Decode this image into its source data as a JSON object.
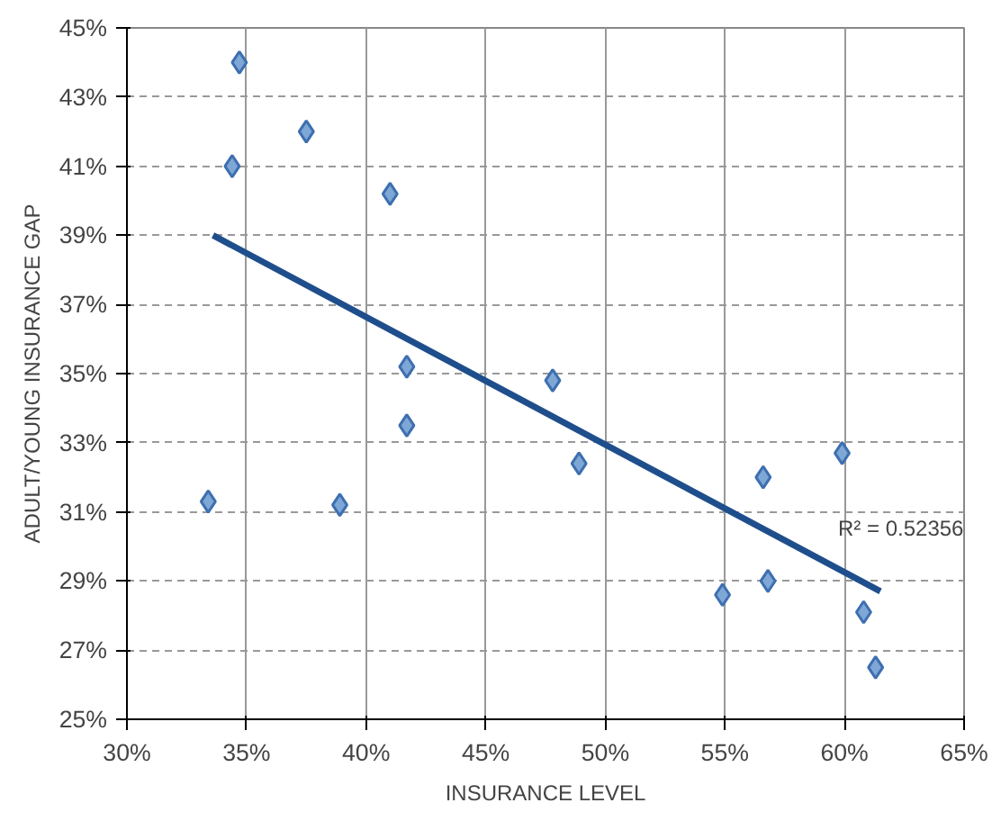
{
  "chart_data": {
    "type": "scatter",
    "xlabel": "INSURANCE LEVEL",
    "ylabel": "ADULT/YOUNG INSURANCE GAP",
    "x": [
      34.7,
      37.5,
      34.4,
      41.0,
      41.7,
      41.7,
      33.4,
      38.9,
      47.8,
      48.9,
      56.6,
      59.9,
      56.8,
      54.9,
      60.8,
      61.3
    ],
    "series": [
      {
        "color": "#7fa7d6",
        "marker": "diamond",
        "values": [
          44.0,
          42.0,
          41.0,
          40.2,
          35.2,
          33.5,
          31.3,
          31.2,
          34.8,
          32.4,
          32.0,
          32.7,
          29.0,
          28.6,
          28.1,
          26.5
        ]
      },
      {
        "type": "line",
        "color": "#1f4e8c",
        "x": [
          33.6,
          61.5
        ],
        "values": [
          39.0,
          28.7
        ],
        "marker": "none"
      }
    ],
    "annotations": [
      "R² = 0.52356"
    ],
    "xlim": [
      30,
      65
    ],
    "ylim": [
      25,
      45
    ],
    "xticks": [
      {
        "value": 30,
        "label": "30%"
      },
      {
        "value": 35,
        "label": "35%"
      },
      {
        "value": 40,
        "label": "40%"
      },
      {
        "value": 45,
        "label": "45%"
      },
      {
        "value": 50,
        "label": "50%"
      },
      {
        "value": 55,
        "label": "55%"
      },
      {
        "value": 60,
        "label": "60%"
      },
      {
        "value": 65,
        "label": "65%"
      }
    ],
    "yticks": [
      {
        "value": 25,
        "label": "25%"
      },
      {
        "value": 27,
        "label": "27%"
      },
      {
        "value": 29,
        "label": "29%"
      },
      {
        "value": 31,
        "label": "31%"
      },
      {
        "value": 33,
        "label": "33%"
      },
      {
        "value": 35,
        "label": "35%"
      },
      {
        "value": 37,
        "label": "37%"
      },
      {
        "value": 39,
        "label": "39%"
      },
      {
        "value": 41,
        "label": "41%"
      },
      {
        "value": 43,
        "label": "43%"
      },
      {
        "value": 45,
        "label": "45%"
      }
    ],
    "grid": true
  }
}
